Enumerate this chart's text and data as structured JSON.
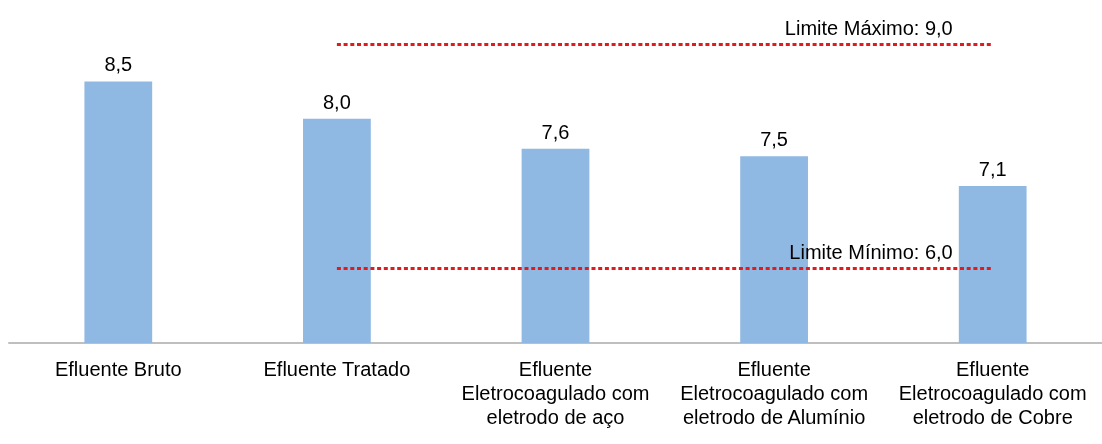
{
  "chart_data": {
    "type": "bar",
    "categories": [
      "Efluente Bruto",
      "Efluente Tratado",
      "Efluente\nEletrocoagulado com\neletrodo de aço",
      "Efluente\nEletrocoagulado com\neletrodo de Alumínio",
      "Efluente\nEletrocoagulado com\neletrodo de Cobre"
    ],
    "values": [
      8.5,
      8.0,
      7.6,
      7.5,
      7.1
    ],
    "value_labels": [
      "8,5",
      "8,0",
      "7,6",
      "7,5",
      "7,1"
    ],
    "color": "#8fb8e3",
    "ylim": [
      5,
      9
    ],
    "tick_labels": "x",
    "grid": false,
    "ref_lines": [
      {
        "axis": "y",
        "value": 9,
        "label": "Limite Máximo: 9,0",
        "color": "#e31a1c",
        "line_style": "dashed"
      },
      {
        "axis": "y",
        "value": 6,
        "label": "Limite Mínimo: 6,0",
        "color": "#e31a1c",
        "line_style": "dashed"
      }
    ]
  }
}
